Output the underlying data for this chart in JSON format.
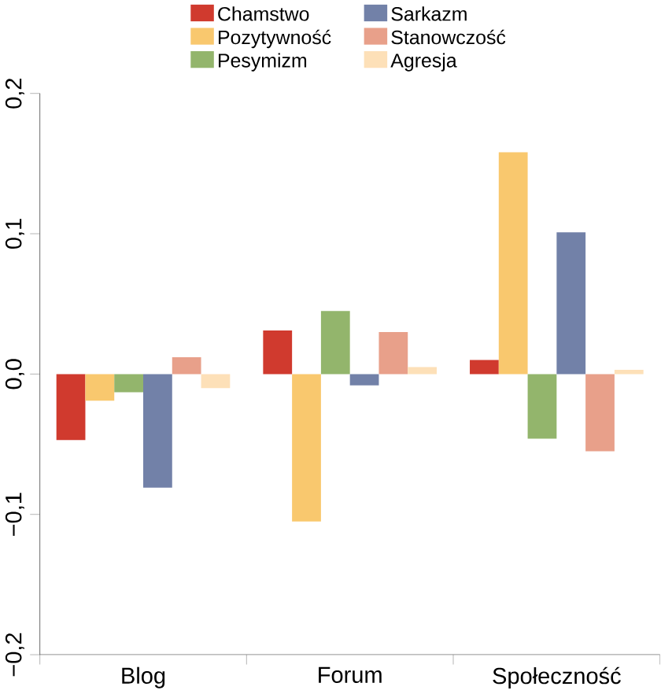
{
  "chart_data": {
    "type": "bar",
    "categories": [
      "Blog",
      "Forum",
      "Społeczność"
    ],
    "series": [
      {
        "name": "Chamstwo",
        "color": "#d03a2e",
        "values": [
          -0.047,
          0.031,
          0.01
        ]
      },
      {
        "name": "Pozytywność",
        "color": "#f9c86e",
        "values": [
          -0.019,
          -0.105,
          0.158
        ]
      },
      {
        "name": "Pesymizm",
        "color": "#93b56c",
        "values": [
          -0.013,
          0.045,
          -0.046
        ]
      },
      {
        "name": "Sarkazm",
        "color": "#7281a8",
        "values": [
          -0.081,
          -0.008,
          0.101
        ]
      },
      {
        "name": "Stanowczość",
        "color": "#e8a08a",
        "values": [
          0.012,
          0.03,
          -0.055
        ]
      },
      {
        "name": "Agresja",
        "color": "#fde0b8",
        "values": [
          -0.01,
          0.005,
          0.003
        ]
      }
    ],
    "ylim": [
      -0.2,
      0.2
    ],
    "yticks": [
      {
        "value": -0.2,
        "label": "−0,2"
      },
      {
        "value": -0.1,
        "label": "−0,1"
      },
      {
        "value": 0,
        "label": "0,0"
      },
      {
        "value": 0.1,
        "label": "0,1"
      },
      {
        "value": 0.2,
        "label": "0,2"
      }
    ],
    "legend": "top",
    "grid": false
  }
}
